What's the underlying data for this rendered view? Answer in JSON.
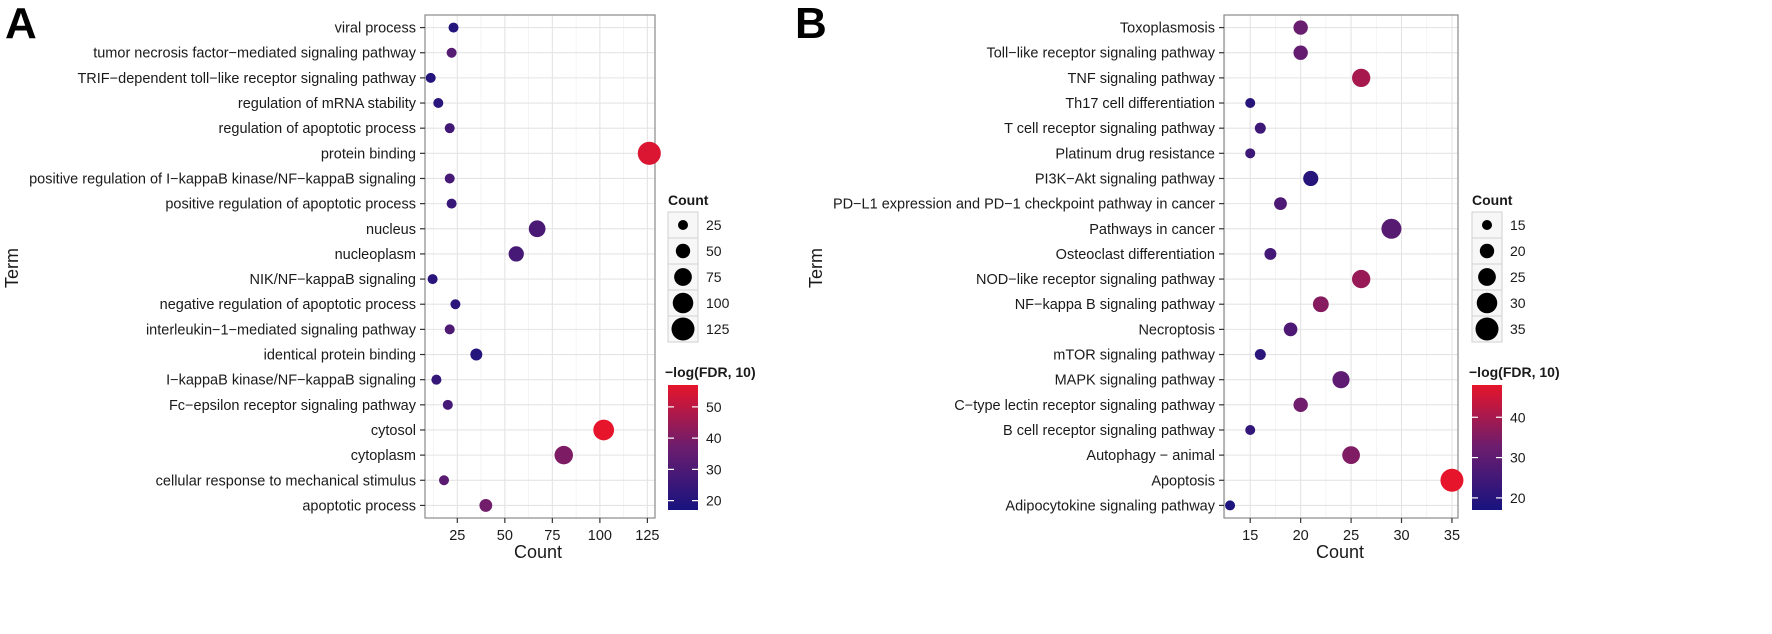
{
  "chart_data": [
    {
      "panel": "A",
      "type": "scatter",
      "xlabel": "Count",
      "ylabel": "Term",
      "xlim": [
        8,
        129
      ],
      "xticks": [
        25,
        50,
        75,
        100,
        125
      ],
      "color_range": [
        17,
        57
      ],
      "terms": [
        {
          "term": "viral process",
          "count": 23,
          "logfdr": 20
        },
        {
          "term": "tumor necrosis factor−mediated signaling pathway",
          "count": 22,
          "logfdr": 32
        },
        {
          "term": "TRIF−dependent toll−like receptor signaling pathway",
          "count": 11,
          "logfdr": 20
        },
        {
          "term": "regulation of mRNA stability",
          "count": 15,
          "logfdr": 21
        },
        {
          "term": "regulation of apoptotic process",
          "count": 21,
          "logfdr": 27
        },
        {
          "term": "protein binding",
          "count": 126,
          "logfdr": 55
        },
        {
          "term": "positive regulation of I−kappaB kinase/NF−kappaB signaling",
          "count": 21,
          "logfdr": 28
        },
        {
          "term": "positive regulation of apoptotic process",
          "count": 22,
          "logfdr": 25
        },
        {
          "term": "nucleus",
          "count": 67,
          "logfdr": 29
        },
        {
          "term": "nucleoplasm",
          "count": 56,
          "logfdr": 28
        },
        {
          "term": "NIK/NF−kappaB signaling",
          "count": 12,
          "logfdr": 21
        },
        {
          "term": "negative regulation of apoptotic process",
          "count": 24,
          "logfdr": 22
        },
        {
          "term": "interleukin−1−mediated signaling pathway",
          "count": 21,
          "logfdr": 30
        },
        {
          "term": "identical protein binding",
          "count": 35,
          "logfdr": 20
        },
        {
          "term": "I−kappaB kinase/NF−kappaB signaling",
          "count": 14,
          "logfdr": 24
        },
        {
          "term": "Fc−epsilon receptor signaling pathway",
          "count": 20,
          "logfdr": 28
        },
        {
          "term": "cytosol",
          "count": 102,
          "logfdr": 57
        },
        {
          "term": "cytoplasm",
          "count": 81,
          "logfdr": 40
        },
        {
          "term": "cellular response to mechanical stimulus",
          "count": 18,
          "logfdr": 33
        },
        {
          "term": "apoptotic process",
          "count": 40,
          "logfdr": 38
        }
      ],
      "legend": {
        "size_title": "Count",
        "size_values": [
          25,
          50,
          75,
          100,
          125
        ],
        "color_title": "−log(FDR, 10)",
        "color_ticks": [
          20,
          30,
          40,
          50
        ]
      }
    },
    {
      "panel": "B",
      "type": "scatter",
      "xlabel": "Count",
      "ylabel": "Term",
      "xlim": [
        12.4,
        35.6
      ],
      "xticks": [
        15,
        20,
        25,
        30,
        35
      ],
      "color_range": [
        17,
        48
      ],
      "terms": [
        {
          "term": "Toxoplasmosis",
          "count": 20,
          "logfdr": 32
        },
        {
          "term": "Toll−like receptor signaling pathway",
          "count": 20,
          "logfdr": 31
        },
        {
          "term": "TNF signaling pathway",
          "count": 26,
          "logfdr": 40
        },
        {
          "term": "Th17 cell differentiation",
          "count": 15,
          "logfdr": 20
        },
        {
          "term": "T cell receptor signaling pathway",
          "count": 16,
          "logfdr": 24
        },
        {
          "term": "Platinum drug resistance",
          "count": 15,
          "logfdr": 24
        },
        {
          "term": "PI3K−Akt signaling pathway",
          "count": 21,
          "logfdr": 20
        },
        {
          "term": "PD−L1 expression and PD−1 checkpoint pathway in cancer",
          "count": 18,
          "logfdr": 27
        },
        {
          "term": "Pathways in cancer",
          "count": 29,
          "logfdr": 29
        },
        {
          "term": "Osteoclast differentiation",
          "count": 17,
          "logfdr": 25
        },
        {
          "term": "NOD−like receptor signaling pathway",
          "count": 26,
          "logfdr": 38
        },
        {
          "term": "NF−kappa B signaling pathway",
          "count": 22,
          "logfdr": 36
        },
        {
          "term": "Necroptosis",
          "count": 19,
          "logfdr": 27
        },
        {
          "term": "mTOR signaling pathway",
          "count": 16,
          "logfdr": 21
        },
        {
          "term": "MAPK signaling pathway",
          "count": 24,
          "logfdr": 30
        },
        {
          "term": "C−type lectin receptor signaling pathway",
          "count": 20,
          "logfdr": 33
        },
        {
          "term": "B cell receptor signaling pathway",
          "count": 15,
          "logfdr": 22
        },
        {
          "term": "Autophagy − animal",
          "count": 25,
          "logfdr": 35
        },
        {
          "term": "Apoptosis",
          "count": 35,
          "logfdr": 48
        },
        {
          "term": "Adipocytokine signaling pathway",
          "count": 13,
          "logfdr": 18
        }
      ],
      "legend": {
        "size_title": "Count",
        "size_values": [
          15,
          20,
          25,
          30,
          35
        ],
        "color_title": "−log(FDR, 10)",
        "color_ticks": [
          20,
          30,
          40
        ]
      }
    }
  ]
}
